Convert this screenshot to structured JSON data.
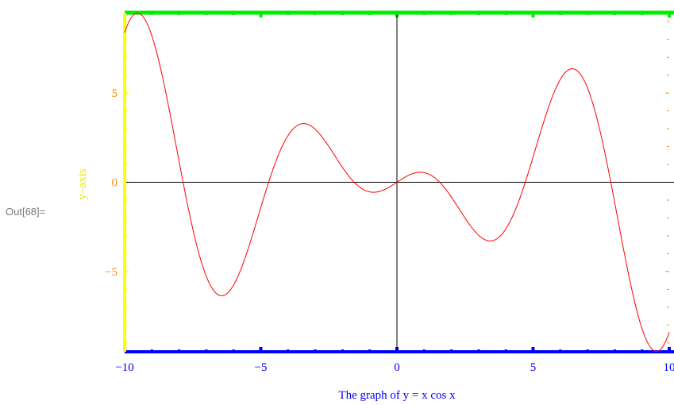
{
  "cell_label": "Out[68]=",
  "colors": {
    "curve": "#ff0000",
    "frame_top": "#00ee00",
    "frame_bottom": "#0000ff",
    "frame_left": "#ffff00",
    "frame_right": "#ff8800",
    "axes": "#000000"
  },
  "chart_data": {
    "type": "line",
    "function": "y = x cos x",
    "xlabel": "The graph of  y = x cos x",
    "ylabel": "y–axis",
    "xlim": [
      -10,
      10
    ],
    "ylim": [
      -9.5,
      9.5
    ],
    "x_ticks": [
      {
        "value": -10,
        "label": "−10"
      },
      {
        "value": -5,
        "label": "−5"
      },
      {
        "value": 0,
        "label": "0"
      },
      {
        "value": 5,
        "label": "5"
      },
      {
        "value": 10,
        "label": "10"
      }
    ],
    "y_ticks": [
      {
        "value": 5,
        "label": "5"
      },
      {
        "value": 0,
        "label": "0"
      },
      {
        "value": -5,
        "label": "−5"
      }
    ],
    "series": [
      {
        "x": [
          -10,
          -9.5,
          -9,
          -8.5,
          -8,
          -7.5,
          -7,
          -6.5,
          -6,
          -5.5,
          -5,
          -4.5,
          -4,
          -3.5,
          -3,
          -2.5,
          -2,
          -1.5,
          -1,
          -0.5,
          0,
          0.5,
          1,
          1.5,
          2,
          2.5,
          3,
          3.5,
          4,
          4.5,
          5,
          5.5,
          6,
          6.5,
          7,
          7.5,
          8,
          8.5,
          9,
          9.5,
          10
        ],
        "values": [
          8.39,
          9.48,
          8.2,
          5.25,
          1.16,
          -2.59,
          -5.28,
          -6.33,
          -5.76,
          -3.89,
          -1.42,
          0.95,
          2.61,
          3.28,
          2.97,
          2.0,
          0.83,
          -0.11,
          -0.54,
          -0.44,
          0,
          0.44,
          0.54,
          0.11,
          -0.83,
          -2.0,
          -2.97,
          -3.28,
          -2.61,
          -0.95,
          1.42,
          3.89,
          5.76,
          6.33,
          5.28,
          2.59,
          -1.16,
          -5.25,
          -8.2,
          -9.48,
          -8.39
        ]
      }
    ]
  }
}
